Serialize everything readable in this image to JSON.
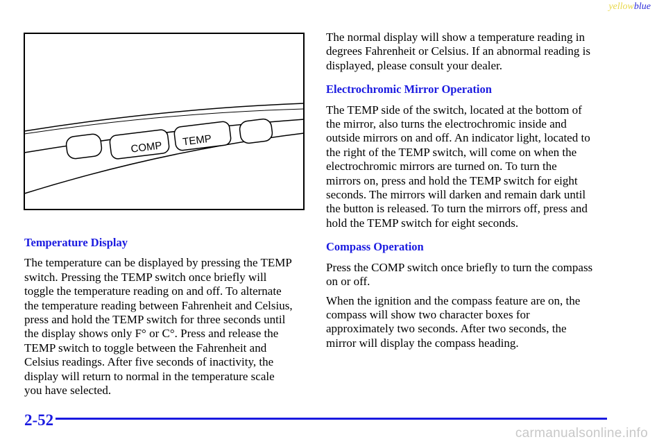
{
  "header": {
    "yellow": "yellow",
    "blue": "blue"
  },
  "figure": {
    "comp": "COMP",
    "temp": "TEMP"
  },
  "left": {
    "heading": "Temperature Display",
    "paragraph": [
      "The temperature can be displayed by pressing the TEMP",
      "switch. Pressing the TEMP switch once briefly will",
      "toggle the temperature reading on and off. To alternate",
      "the temperature reading between Fahrenheit and Celsius,",
      "press and hold the TEMP switch for three seconds until",
      "the display shows only F° or C°. Press and release the",
      "TEMP switch to toggle between the Fahrenheit and",
      "Celsius readings. After five seconds of inactivity, the",
      "display will return to normal in the temperature scale",
      "you have selected."
    ]
  },
  "right": {
    "intro": [
      "The normal display will show a temperature reading in",
      "degrees Fahrenheit or Celsius. If an abnormal reading is",
      "displayed, please consult your dealer."
    ],
    "mirror_heading": "Electrochromic Mirror Operation",
    "mirror_paragraph": [
      "The TEMP side of the switch, located at the bottom of",
      "the mirror, also turns the electrochromic inside and",
      "outside mirrors on and off. An indicator light, located to",
      "the right of the TEMP switch, will come on when the",
      "electrochromic mirrors are turned on. To turn the",
      "mirrors on, press and hold the TEMP switch for eight",
      "seconds. The mirrors will darken and remain dark until",
      "the button is released. To turn the mirrors off, press and",
      "hold the TEMP switch for eight seconds."
    ],
    "compass_heading": "Compass Operation",
    "compass_paragraph_1": [
      "Press the COMP switch once briefly to turn the compass",
      "on or off."
    ],
    "compass_paragraph_2": [
      "When the ignition and the compass feature are on, the",
      "compass will show two character boxes for",
      "approximately two seconds. After two seconds, the",
      "mirror will display the compass heading."
    ]
  },
  "footer": {
    "page_number": "2-52",
    "watermark": "carmanualsonline.info"
  }
}
